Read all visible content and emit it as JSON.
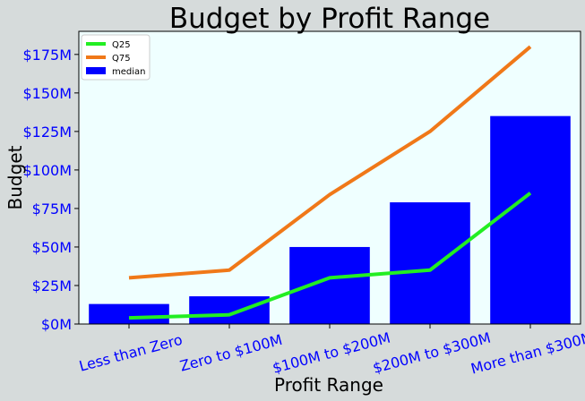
{
  "chart_data": {
    "type": "bar",
    "title": "Budget by Profit Range",
    "xlabel": "Profit Range",
    "ylabel": "Budget",
    "categories": [
      "Less than Zero",
      "Zero to $100M",
      "$100M to $200M",
      "$200M to $300M",
      "More than $300M"
    ],
    "ylim": [
      0,
      190
    ],
    "yunit": "$M",
    "yticks": [
      0,
      25,
      50,
      75,
      100,
      125,
      150,
      175
    ],
    "ytick_labels": [
      "$0M",
      "$25M",
      "$50M",
      "$75M",
      "$100M",
      "$125M",
      "$150M",
      "$175M"
    ],
    "series": [
      {
        "name": "median",
        "kind": "bar",
        "color": "#0000ff",
        "values": [
          13,
          18,
          50,
          79,
          135
        ]
      },
      {
        "name": "Q25",
        "kind": "line",
        "color": "#22ee22",
        "values": [
          4,
          6,
          30,
          35,
          85
        ]
      },
      {
        "name": "Q75",
        "kind": "line",
        "color": "#f07818",
        "values": [
          30,
          35,
          84,
          125,
          180
        ]
      }
    ],
    "legend": {
      "position": "top-left",
      "order": [
        "Q25",
        "Q75",
        "median"
      ]
    },
    "grid": false,
    "colors": {
      "background": "#d6dbdb",
      "plot_area": "#efffff",
      "tick_labels": "#0000ff",
      "text": "#000000"
    }
  }
}
